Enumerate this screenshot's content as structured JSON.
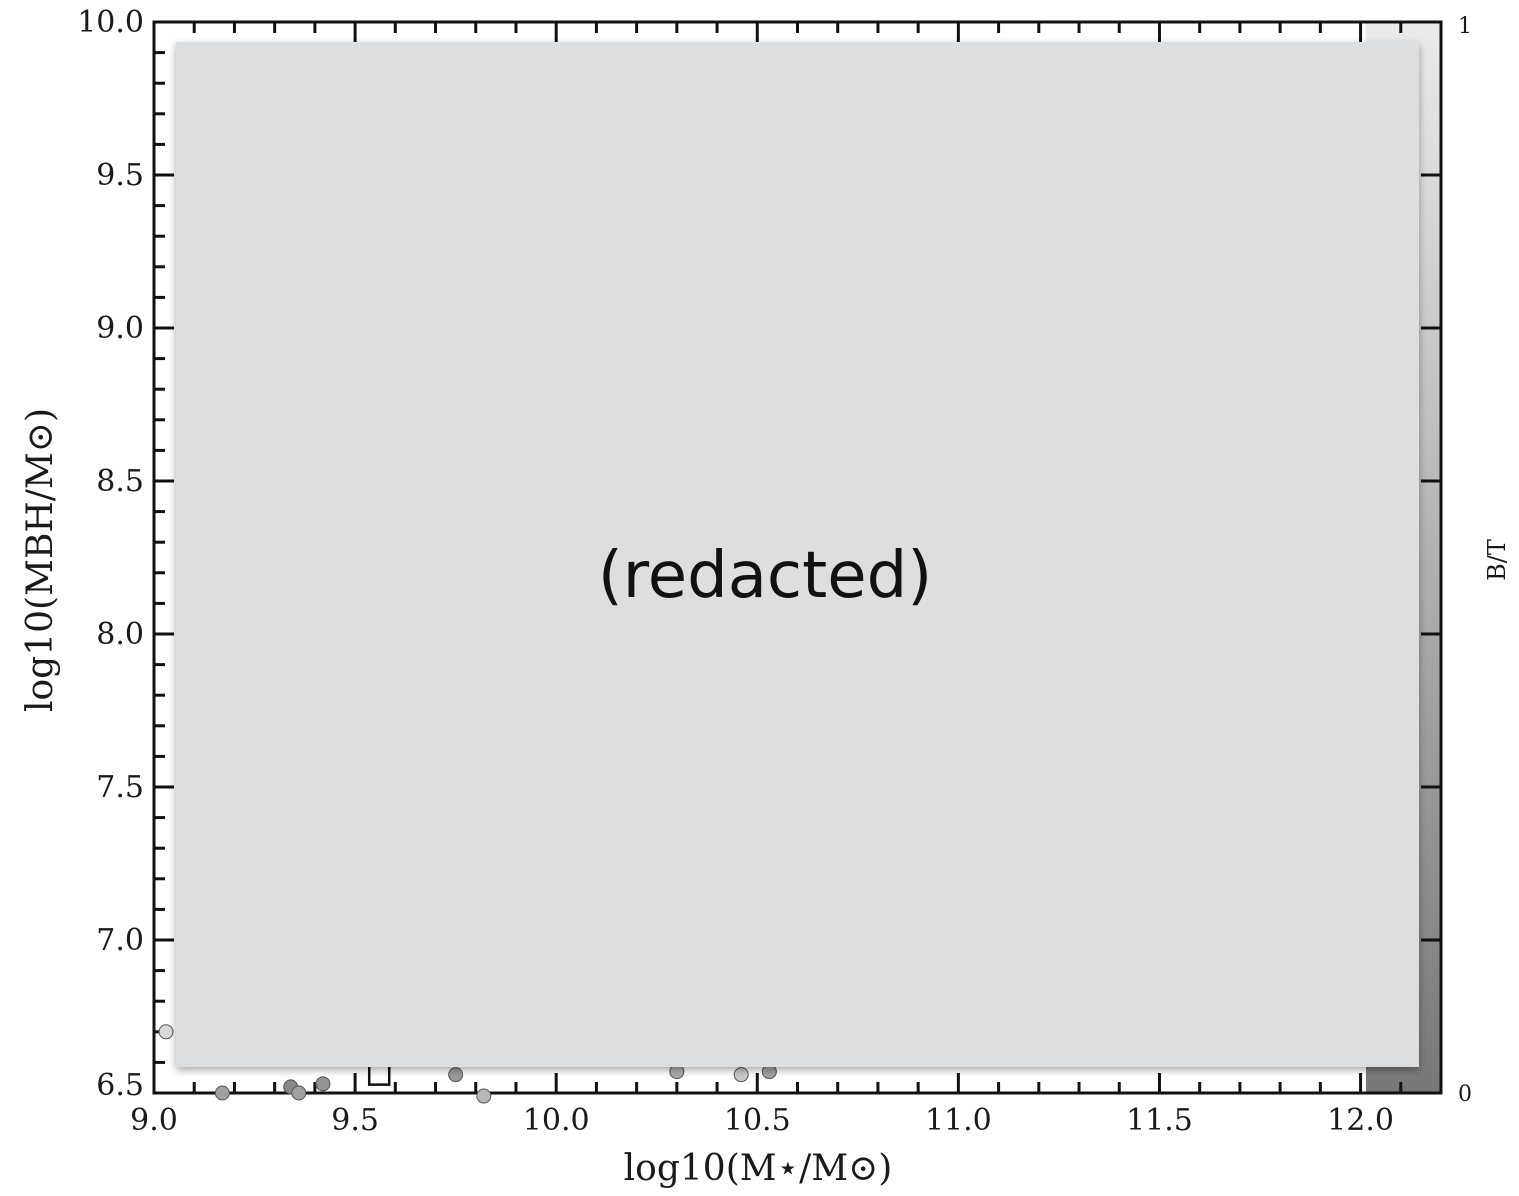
{
  "chart_data": {
    "type": "scatter",
    "xlabel": "log10(M⋆/M⊙)",
    "ylabel": "log10(MBH/M⊙)",
    "xlim": [
      9.0,
      12.2
    ],
    "ylim": [
      6.5,
      10.0
    ],
    "x_ticks": [
      9.0,
      9.5,
      10.0,
      10.5,
      11.0,
      11.5,
      12.0
    ],
    "y_ticks": [
      6.5,
      7.0,
      7.5,
      8.0,
      8.5,
      9.0,
      9.5,
      10.0
    ],
    "x_tick_labels": [
      "9.0",
      "9.5",
      "10.0",
      "10.5",
      "11.0",
      "11.5",
      "12.0"
    ],
    "y_tick_labels": [
      "6.5",
      "7.0",
      "7.5",
      "8.0",
      "8.5",
      "9.0",
      "9.5",
      "10.0"
    ],
    "colorbar": {
      "label": "B/T",
      "range": [
        0,
        1
      ],
      "tick_labels": [
        "0",
        "1"
      ],
      "colors": [
        "#777777",
        "#ebebeb"
      ]
    },
    "points": [
      {
        "x": 9.03,
        "y": 6.7,
        "c": 0.85
      },
      {
        "x": 9.17,
        "y": 6.5,
        "c": 0.35
      },
      {
        "x": 9.34,
        "y": 6.52,
        "c": 0.15
      },
      {
        "x": 9.36,
        "y": 6.5,
        "c": 0.35
      },
      {
        "x": 9.42,
        "y": 6.53,
        "c": 0.25
      },
      {
        "x": 9.75,
        "y": 6.56,
        "c": 0.3
      },
      {
        "x": 9.82,
        "y": 6.49,
        "c": 0.55
      },
      {
        "x": 10.3,
        "y": 6.57,
        "c": 0.45
      },
      {
        "x": 10.46,
        "y": 6.56,
        "c": 0.7
      },
      {
        "x": 10.53,
        "y": 6.57,
        "c": 0.35
      }
    ],
    "square_markers": [
      {
        "x": 9.56,
        "y": 6.56
      }
    ],
    "grid": false
  },
  "redaction": {
    "text": "(redacted)",
    "color": "#dddee0"
  }
}
